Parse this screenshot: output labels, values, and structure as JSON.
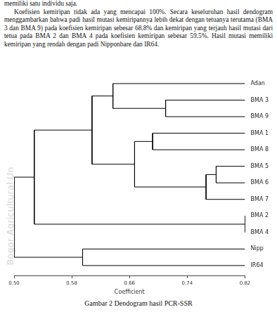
{
  "paragraph": [
    "memiliki satu individu saja.",
    "Koefisien kemiripan tidak ada yang mencapai 100%. Secara keseluruhan hasil dendogram menggambarkan bahwa padi hasil mutasi kemiripannya lebih dekat dengan tetuanya terutama (BMA 3 dan BMA 9) pada koefisien kemiripan sebesar 68.8% dan kemiripan yang terjauh hasil mutasi dari tetua pada BMA 2 dan BMA 4 pada koefisien kemiripan sebesar 59.5%. Hasil mutasi memiliki kemiripan yang rendah dengan padi Nipponbare dan IR64."
  ],
  "watermark": "Bogor Agricultural Un",
  "caption": "Gambar 2 Dendogram hasil PCR-SSR",
  "chart_data": {
    "type": "dendrogram",
    "color": "#000000",
    "grid": false,
    "x_label": "Coefficient",
    "xlim": [
      0.5,
      0.82
    ],
    "xticks": [
      {
        "value": 0.5,
        "label": "0.50"
      },
      {
        "value": 0.58,
        "label": "0.58"
      },
      {
        "value": 0.66,
        "label": "0.66"
      },
      {
        "value": 0.74,
        "label": "0.74"
      },
      {
        "value": 0.82,
        "label": "0.82"
      }
    ],
    "leaves": [
      "Adan",
      "BMA 3",
      "BMA 9",
      "BMA 1",
      "BMA 8",
      "BMA 5",
      "BMA 6",
      "BMA 7",
      "BMA 2",
      "BMA 4",
      "Nipp",
      "IR64"
    ],
    "merges": [
      {
        "members": [
          1,
          2
        ],
        "height": 0.71
      },
      {
        "members": [
          0,
          12
        ],
        "height": 0.637
      },
      {
        "members": [
          3,
          4
        ],
        "height": 0.692
      },
      {
        "members": [
          5,
          6
        ],
        "height": 0.78
      },
      {
        "members": [
          15,
          7
        ],
        "height": 0.766
      },
      {
        "members": [
          14,
          16
        ],
        "height": 0.667
      },
      {
        "members": [
          13,
          17
        ],
        "height": 0.608
      },
      {
        "members": [
          8,
          9
        ],
        "height": 0.82
      },
      {
        "members": [
          18,
          19
        ],
        "height": 0.528
      },
      {
        "members": [
          10,
          11
        ],
        "height": 0.595
      },
      {
        "members": [
          20,
          21
        ],
        "height": 0.5
      }
    ]
  }
}
